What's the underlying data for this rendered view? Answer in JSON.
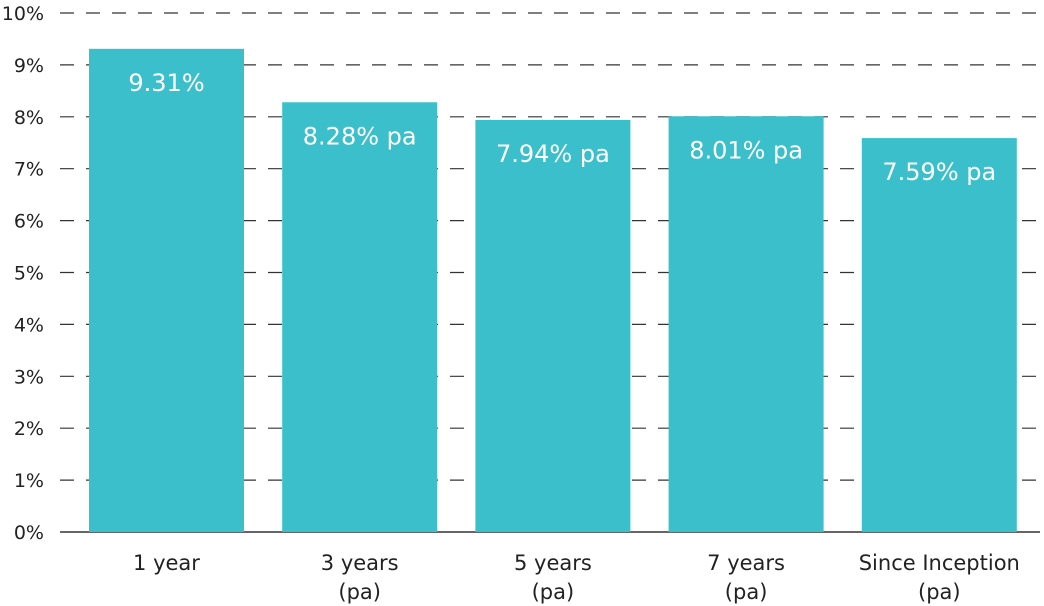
{
  "chart_data": {
    "type": "bar",
    "title": "",
    "xlabel": "",
    "ylabel": "",
    "categories": [
      [
        "1 year"
      ],
      [
        "3 years",
        "(pa)"
      ],
      [
        "5 years",
        "(pa)"
      ],
      [
        "7 years",
        "(pa)"
      ],
      [
        "Since Inception",
        "(pa)"
      ]
    ],
    "values": [
      9.31,
      8.28,
      7.94,
      8.01,
      7.59
    ],
    "data_labels": [
      "9.31%",
      "8.28% pa",
      "7.94% pa",
      "8.01% pa",
      "7.59% pa"
    ],
    "ylim": [
      0,
      10
    ],
    "yticks": [
      0,
      1,
      2,
      3,
      4,
      5,
      6,
      7,
      8,
      9,
      10
    ],
    "ytick_labels": [
      "0%",
      "1%",
      "2%",
      "3%",
      "4%",
      "5%",
      "6%",
      "7%",
      "8%",
      "9%",
      "10%"
    ],
    "grid": "horizontal-dashed",
    "legend": "none",
    "colors": {
      "bar": "#3bbfca",
      "grid": "#333333",
      "text": "#222222",
      "data_label": "#ffffff"
    }
  }
}
